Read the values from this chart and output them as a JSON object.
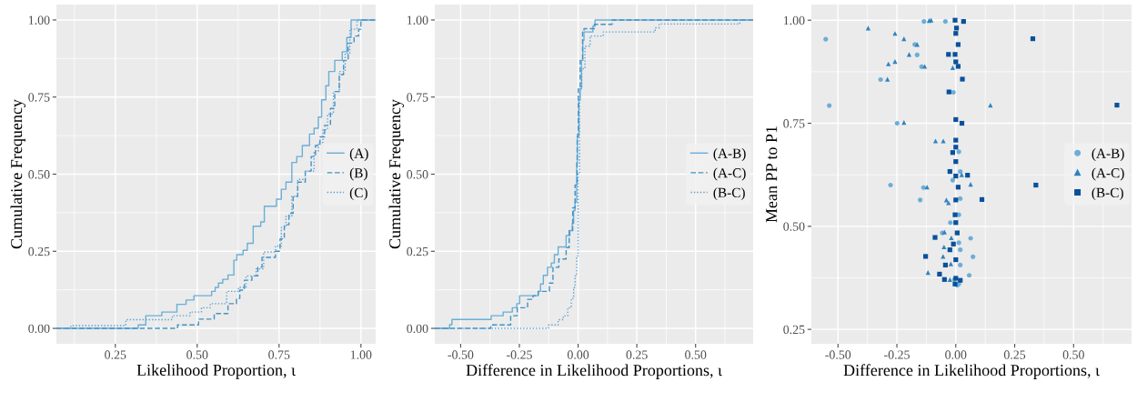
{
  "chart_data": [
    {
      "type": "step",
      "xlabel": "Likelihood Proportion, ι",
      "ylabel": "Cumulative Frequency",
      "legend": "right",
      "grid": true,
      "xlim": [
        0.07,
        1.045
      ],
      "ylim": [
        -0.05,
        1.05
      ],
      "xticks": [
        {
          "value": 0.25,
          "label": "0.25"
        },
        {
          "value": 0.5,
          "label": "0.50"
        },
        {
          "value": 0.75,
          "label": "0.75"
        },
        {
          "value": 1.0,
          "label": "1.00"
        }
      ],
      "yticks": [
        {
          "value": 0,
          "label": "0.00"
        },
        {
          "value": 0.25,
          "label": "0.25"
        },
        {
          "value": 0.5,
          "label": "0.50"
        },
        {
          "value": 0.75,
          "label": "0.75"
        },
        {
          "value": 1.0,
          "label": "1.00"
        }
      ],
      "series": [
        {
          "name": "(A)",
          "color": "#6baed6",
          "line_style": "solid",
          "x": [
            0.07,
            0.32,
            0.343,
            0.392,
            0.438,
            0.466,
            0.49,
            0.544,
            0.555,
            0.565,
            0.578,
            0.594,
            0.612,
            0.621,
            0.64,
            0.653,
            0.671,
            0.694,
            0.705,
            0.742,
            0.757,
            0.771,
            0.789,
            0.804,
            0.821,
            0.843,
            0.857,
            0.87,
            0.88,
            0.893,
            0.902,
            0.92,
            0.943,
            0.957,
            0.97,
            1.045
          ],
          "values": [
            0,
            0.011,
            0.041,
            0.053,
            0.078,
            0.092,
            0.106,
            0.12,
            0.133,
            0.147,
            0.159,
            0.173,
            0.221,
            0.239,
            0.253,
            0.276,
            0.331,
            0.345,
            0.396,
            0.419,
            0.451,
            0.474,
            0.538,
            0.557,
            0.593,
            0.63,
            0.649,
            0.685,
            0.741,
            0.787,
            0.833,
            0.869,
            0.897,
            0.943,
            1.0,
            1.0
          ]
        },
        {
          "name": "(B)",
          "color": "#4292c6",
          "line_style": "dashed",
          "x": [
            0.07,
            0.44,
            0.504,
            0.552,
            0.594,
            0.62,
            0.63,
            0.644,
            0.667,
            0.685,
            0.698,
            0.739,
            0.753,
            0.766,
            0.78,
            0.793,
            0.807,
            0.83,
            0.848,
            0.861,
            0.875,
            0.889,
            0.907,
            0.92,
            0.934,
            0.947,
            0.961,
            0.979,
            0.993,
            1.0,
            1.045
          ],
          "values": [
            0,
            0.011,
            0.03,
            0.048,
            0.08,
            0.097,
            0.124,
            0.156,
            0.17,
            0.198,
            0.23,
            0.25,
            0.29,
            0.336,
            0.373,
            0.428,
            0.474,
            0.51,
            0.557,
            0.593,
            0.621,
            0.658,
            0.713,
            0.768,
            0.823,
            0.869,
            0.925,
            0.948,
            0.97,
            1.0,
            1.0
          ]
        },
        {
          "name": "(C)",
          "color": "#5a9fd4",
          "line_style": "dotted",
          "x": [
            0.07,
            0.114,
            0.282,
            0.424,
            0.478,
            0.513,
            0.54,
            0.59,
            0.626,
            0.649,
            0.68,
            0.703,
            0.739,
            0.757,
            0.771,
            0.789,
            0.807,
            0.83,
            0.857,
            0.87,
            0.884,
            0.898,
            0.916,
            0.934,
            0.952,
            0.966,
            0.988,
            1.045
          ],
          "values": [
            0,
            0.009,
            0.028,
            0.041,
            0.053,
            0.067,
            0.08,
            0.12,
            0.133,
            0.17,
            0.193,
            0.248,
            0.267,
            0.327,
            0.363,
            0.428,
            0.483,
            0.51,
            0.575,
            0.603,
            0.644,
            0.695,
            0.768,
            0.833,
            0.892,
            0.97,
            1.0,
            1.0
          ]
        }
      ]
    },
    {
      "type": "step",
      "xlabel": "Difference in Likelihood Proportions, ι",
      "ylabel": "Cumulative Frequency",
      "legend": "right",
      "grid": true,
      "xlim": [
        -0.61,
        0.745
      ],
      "ylim": [
        -0.05,
        1.05
      ],
      "xticks": [
        {
          "value": -0.5,
          "label": "-0.50"
        },
        {
          "value": -0.25,
          "label": "-0.25"
        },
        {
          "value": 0,
          "label": "0.00"
        },
        {
          "value": 0.25,
          "label": "0.25"
        },
        {
          "value": 0.5,
          "label": "0.50"
        }
      ],
      "yticks": [
        {
          "value": 0,
          "label": "0.00"
        },
        {
          "value": 0.25,
          "label": "0.25"
        },
        {
          "value": 0.5,
          "label": "0.50"
        },
        {
          "value": 0.75,
          "label": "0.75"
        },
        {
          "value": 1.0,
          "label": "1.00"
        }
      ],
      "series": [
        {
          "name": "(A-B)",
          "color": "#6baed6",
          "line_style": "solid",
          "x": [
            -0.61,
            -0.547,
            -0.537,
            -0.37,
            -0.319,
            -0.28,
            -0.261,
            -0.249,
            -0.17,
            -0.16,
            -0.148,
            -0.13,
            -0.114,
            -0.101,
            -0.085,
            -0.051,
            -0.035,
            -0.025,
            -0.019,
            -0.013,
            -0.006,
            -0.003,
            0.003,
            0.009,
            0.014,
            0.02,
            0.025,
            0.063,
            0.072,
            0.745
          ],
          "values": [
            0,
            0.012,
            0.029,
            0.041,
            0.053,
            0.067,
            0.08,
            0.106,
            0.12,
            0.144,
            0.172,
            0.198,
            0.212,
            0.239,
            0.264,
            0.301,
            0.317,
            0.34,
            0.382,
            0.409,
            0.538,
            0.63,
            0.741,
            0.777,
            0.869,
            0.934,
            0.961,
            0.98,
            1.0,
            1.0
          ]
        },
        {
          "name": "(A-C)",
          "color": "#4292c6",
          "line_style": "dashed",
          "x": [
            -0.61,
            -0.372,
            -0.287,
            -0.259,
            -0.215,
            -0.192,
            -0.17,
            -0.122,
            -0.107,
            -0.082,
            -0.051,
            -0.038,
            -0.023,
            -0.013,
            -0.004,
            0.001,
            0.009,
            0.019,
            0.025,
            0.069,
            0.145,
            0.745
          ],
          "values": [
            0,
            0.011,
            0.041,
            0.067,
            0.094,
            0.106,
            0.12,
            0.147,
            0.198,
            0.225,
            0.262,
            0.317,
            0.391,
            0.465,
            0.621,
            0.777,
            0.869,
            0.961,
            0.972,
            0.986,
            1.0,
            1.0
          ]
        },
        {
          "name": "(B-C)",
          "color": "#5a9fd4",
          "line_style": "dotted",
          "x": [
            -0.61,
            -0.126,
            -0.085,
            -0.063,
            -0.044,
            -0.029,
            -0.019,
            -0.013,
            -0.006,
            0.0,
            0.006,
            0.016,
            0.029,
            0.051,
            0.107,
            0.328,
            0.345,
            0.688,
            0.745
          ],
          "values": [
            0,
            0.011,
            0.028,
            0.041,
            0.067,
            0.097,
            0.133,
            0.17,
            0.235,
            0.502,
            0.777,
            0.842,
            0.915,
            0.948,
            0.961,
            0.975,
            0.987,
            1.0,
            1.0
          ]
        }
      ]
    },
    {
      "type": "scatter",
      "xlabel": "Difference in Likelihood Proportions, ι",
      "ylabel": "Mean PP to P1",
      "legend": "right",
      "grid": true,
      "xlim": [
        -0.613,
        0.746
      ],
      "ylim": [
        0.215,
        1.038
      ],
      "xticks": [
        {
          "value": -0.5,
          "label": "-0.50"
        },
        {
          "value": -0.25,
          "label": "-0.25"
        },
        {
          "value": 0,
          "label": "0.00"
        },
        {
          "value": 0.25,
          "label": "0.25"
        },
        {
          "value": 0.5,
          "label": "0.50"
        }
      ],
      "yticks": [
        {
          "value": 0.25,
          "label": "0.25"
        },
        {
          "value": 0.5,
          "label": "0.50"
        },
        {
          "value": 0.75,
          "label": "0.75"
        },
        {
          "value": 1.0,
          "label": "1.00"
        }
      ],
      "series": [
        {
          "name": "(A-B)",
          "color": "#6baed6",
          "marker": "circle",
          "x": [
            -0.552,
            -0.537,
            -0.319,
            -0.277,
            -0.249,
            -0.164,
            -0.174,
            -0.145,
            -0.135,
            -0.151,
            -0.137,
            -0.044,
            -0.01,
            -0.013,
            0.019,
            0.013,
            0.019,
            0.013,
            0.063,
            0.073,
            0.057,
            0.019,
            0.019,
            0.013,
            -0.057,
            -0.023,
            0.013,
            -0.006,
            0.006
          ],
          "values": [
            0.954,
            0.793,
            0.856,
            0.6,
            0.75,
            0.916,
            0.941,
            0.887,
            0.997,
            0.564,
            0.594,
            0.997,
            0.825,
            0.612,
            0.633,
            0.681,
            0.567,
            0.528,
            0.471,
            0.426,
            0.381,
            0.406,
            0.443,
            0.46,
            0.484,
            0.509,
            0.36,
            0.371,
            0.357
          ]
        },
        {
          "name": "(A-C)",
          "color": "#3182bd",
          "marker": "triangle",
          "x": [
            -0.372,
            -0.258,
            -0.22,
            -0.164,
            -0.198,
            -0.258,
            -0.286,
            -0.132,
            -0.29,
            -0.105,
            -0.113,
            -0.22,
            0.147,
            -0.086,
            -0.053,
            -0.122,
            0.063,
            0.025,
            -0.04,
            -0.031,
            -0.048,
            -0.05,
            -0.054,
            -0.021,
            -0.118,
            -0.025,
            -0.013,
            -0.019
          ],
          "values": [
            0.981,
            0.968,
            0.955,
            0.941,
            0.917,
            0.9,
            0.894,
            0.888,
            0.857,
            1.0,
            0.999,
            0.752,
            0.794,
            0.707,
            0.707,
            0.595,
            0.602,
            0.625,
            0.564,
            0.557,
            0.486,
            0.45,
            0.427,
            0.409,
            0.388,
            0.371,
            0.885,
            0.472
          ]
        },
        {
          "name": "(B-C)",
          "color": "#08519c",
          "marker": "square",
          "x": [
            -0.003,
            0.033,
            0.003,
            0.0,
            0.01,
            -0.031,
            -0.003,
            0.0,
            0.01,
            0.028,
            -0.029,
            0.327,
            0.684,
            0.0,
            0.026,
            0.0,
            0.0,
            -0.013,
            0.0,
            -0.025,
            0.0,
            0.05,
            0.01,
            0.34,
            0.111,
            0.0,
            -0.003,
            0.0,
            0.006,
            -0.088,
            -0.01,
            -0.025,
            -0.128,
            0.0,
            -0.044,
            -0.069,
            -0.048,
            0.0,
            0.019,
            -0.003
          ],
          "values": [
            1.0,
            0.997,
            0.981,
            0.968,
            0.941,
            0.917,
            0.917,
            0.899,
            0.888,
            0.857,
            0.826,
            0.955,
            0.794,
            0.759,
            0.75,
            0.709,
            0.692,
            0.679,
            0.657,
            0.633,
            0.622,
            0.624,
            0.595,
            0.6,
            0.565,
            0.564,
            0.528,
            0.509,
            0.484,
            0.473,
            0.457,
            0.443,
            0.427,
            0.419,
            0.406,
            0.384,
            0.371,
            0.374,
            0.369,
            0.36
          ]
        }
      ]
    }
  ]
}
